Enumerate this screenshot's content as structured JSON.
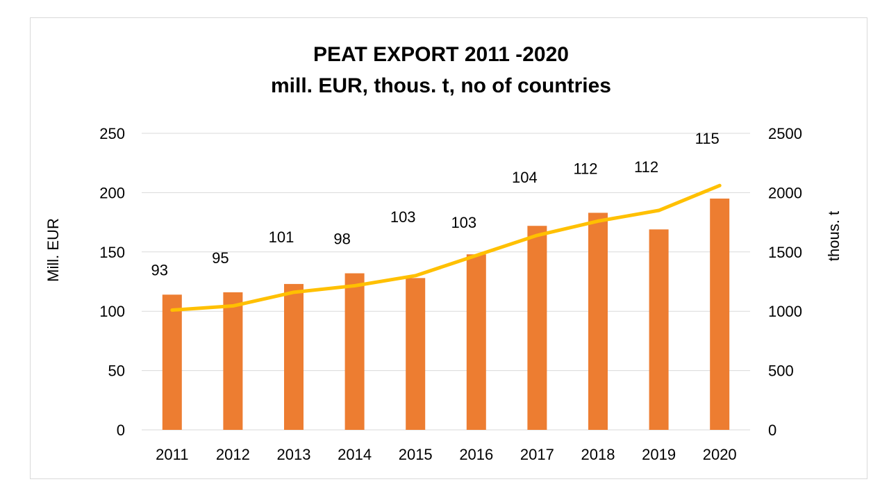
{
  "chart_data": {
    "type": "bar",
    "title_lines": [
      "PEAT EXPORT 2011 -2020",
      "mill. EUR, thous. t, no of countries"
    ],
    "categories": [
      "2011",
      "2012",
      "2013",
      "2014",
      "2015",
      "2016",
      "2017",
      "2018",
      "2019",
      "2020"
    ],
    "ylabel": "Mill. EUR",
    "y2label": "thous. t",
    "ylim": [
      0,
      250
    ],
    "y2lim": [
      0,
      2500
    ],
    "yticks": [
      "0",
      "50",
      "100",
      "150",
      "200",
      "250"
    ],
    "y2ticks": [
      "0",
      "500",
      "1000",
      "1500",
      "2000",
      "2500"
    ],
    "grid": true,
    "series": [
      {
        "type": "bar",
        "axis": "left",
        "values": [
          114,
          116,
          123,
          132,
          128,
          148,
          172,
          183,
          169,
          195
        ]
      },
      {
        "type": "line",
        "axis": "right",
        "values": [
          1010,
          1045,
          1160,
          1215,
          1300,
          1470,
          1640,
          1760,
          1850,
          2060
        ]
      }
    ],
    "data_labels": [
      "93",
      "95",
      "101",
      "98",
      "103",
      "103",
      "104",
      "112",
      "112",
      "115"
    ],
    "colors": {
      "bar": "#ed7d31",
      "line": "#ffc000",
      "grid": "#d9d9d9"
    }
  }
}
